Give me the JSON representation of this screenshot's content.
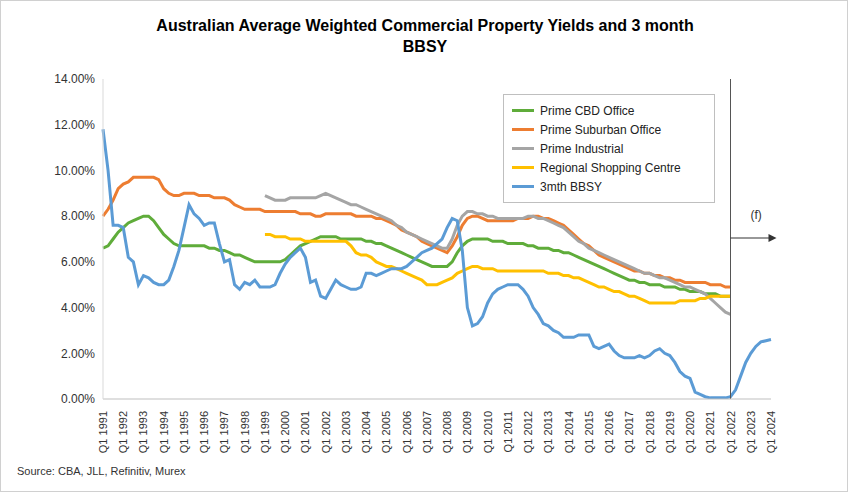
{
  "chart_data": {
    "type": "line",
    "title": "Australian Average Weighted Commercial Property Yields and 3 month BBSY",
    "source": "Source: CBA, JLL, Refinitiv, Murex",
    "legend": "top-right",
    "grid": false,
    "categories": [
      "Q1 1991",
      null,
      null,
      null,
      "Q1 1992",
      null,
      null,
      null,
      "Q1 1993",
      null,
      null,
      null,
      "Q1 1994",
      null,
      null,
      null,
      "Q1 1995",
      null,
      null,
      null,
      "Q1 1996",
      null,
      null,
      null,
      "Q1 1997",
      null,
      null,
      null,
      "Q1 1998",
      null,
      null,
      null,
      "Q1 1999",
      null,
      null,
      null,
      "Q1 2000",
      null,
      null,
      null,
      "Q1 2001",
      null,
      null,
      null,
      "Q1 2002",
      null,
      null,
      null,
      "Q1 2003",
      null,
      null,
      null,
      "Q1 2004",
      null,
      null,
      null,
      "Q1 2005",
      null,
      null,
      null,
      "Q1 2006",
      null,
      null,
      null,
      "Q1 2007",
      null,
      null,
      null,
      "Q1 2008",
      null,
      null,
      null,
      "Q1 2009",
      null,
      null,
      null,
      "Q1 2010",
      null,
      null,
      null,
      "Q1 2011",
      null,
      null,
      null,
      "Q1 2012",
      null,
      null,
      null,
      "Q1 2013",
      null,
      null,
      null,
      "Q1 2014",
      null,
      null,
      null,
      "Q1 2015",
      null,
      null,
      null,
      "Q1 2016",
      null,
      null,
      null,
      "Q1 2017",
      null,
      null,
      null,
      "Q1 2018",
      null,
      null,
      null,
      "Q1 2019",
      null,
      null,
      null,
      "Q1 2020",
      null,
      null,
      null,
      "Q1 2021",
      null,
      null,
      null,
      "Q1 2022",
      null,
      null,
      null,
      "Q1 2023",
      null,
      null,
      null,
      "Q1 2024"
    ],
    "ylim": [
      0,
      14
    ],
    "yticks": [
      {
        "value": 0,
        "label": "0.00%"
      },
      {
        "value": 2,
        "label": "2.00%"
      },
      {
        "value": 4,
        "label": "4.00%"
      },
      {
        "value": 6,
        "label": "6.00%"
      },
      {
        "value": 8,
        "label": "8.00%"
      },
      {
        "value": 10,
        "label": "10.00%"
      },
      {
        "value": 12,
        "label": "12.00%"
      },
      {
        "value": 14,
        "label": "14.00%"
      }
    ],
    "annotations": [
      {
        "x": "Q1 2022",
        "label": "(f)"
      }
    ],
    "series": [
      {
        "name": "Prime CBD Office",
        "color": "#5fac3a",
        "values": [
          6.6,
          6.7,
          7.0,
          7.3,
          7.5,
          7.7,
          7.8,
          7.9,
          8.0,
          8.0,
          7.8,
          7.5,
          7.2,
          7.0,
          6.8,
          6.7,
          6.7,
          6.7,
          6.7,
          6.7,
          6.7,
          6.6,
          6.6,
          6.5,
          6.5,
          6.4,
          6.3,
          6.3,
          6.2,
          6.1,
          6.0,
          6.0,
          6.0,
          6.0,
          6.0,
          6.0,
          6.1,
          6.3,
          6.5,
          6.7,
          6.8,
          6.9,
          7.0,
          7.1,
          7.1,
          7.1,
          7.1,
          7.0,
          7.0,
          7.0,
          7.0,
          7.0,
          6.9,
          6.9,
          6.8,
          6.8,
          6.7,
          6.6,
          6.5,
          6.4,
          6.3,
          6.2,
          6.1,
          6.0,
          5.9,
          5.8,
          5.8,
          5.8,
          5.8,
          6.0,
          6.4,
          6.7,
          6.9,
          7.0,
          7.0,
          7.0,
          7.0,
          6.9,
          6.9,
          6.9,
          6.8,
          6.8,
          6.8,
          6.8,
          6.7,
          6.7,
          6.6,
          6.6,
          6.6,
          6.5,
          6.5,
          6.4,
          6.4,
          6.3,
          6.2,
          6.1,
          6.0,
          5.9,
          5.8,
          5.7,
          5.6,
          5.5,
          5.4,
          5.3,
          5.2,
          5.2,
          5.1,
          5.1,
          5.0,
          5.0,
          5.0,
          4.9,
          4.9,
          4.9,
          4.8,
          4.8,
          4.7,
          4.7,
          4.7,
          4.6,
          4.6,
          4.6,
          4.5,
          4.5,
          4.5,
          null,
          null,
          null,
          null,
          null,
          null,
          null,
          null
        ]
      },
      {
        "name": "Prime Suburban Office",
        "color": "#ed7d31",
        "values": [
          8.0,
          8.3,
          8.7,
          9.2,
          9.4,
          9.5,
          9.7,
          9.7,
          9.7,
          9.7,
          9.7,
          9.6,
          9.2,
          9.0,
          8.9,
          8.9,
          9.0,
          9.0,
          9.0,
          8.9,
          8.9,
          8.9,
          8.8,
          8.8,
          8.8,
          8.7,
          8.5,
          8.4,
          8.3,
          8.3,
          8.3,
          8.3,
          8.2,
          8.2,
          8.2,
          8.2,
          8.2,
          8.2,
          8.2,
          8.1,
          8.1,
          8.1,
          8.0,
          8.0,
          8.1,
          8.1,
          8.1,
          8.1,
          8.1,
          8.1,
          8.0,
          8.0,
          8.0,
          8.0,
          7.9,
          7.9,
          7.8,
          7.7,
          7.6,
          7.4,
          7.3,
          7.2,
          7.1,
          6.9,
          6.8,
          6.7,
          6.6,
          6.5,
          6.4,
          6.7,
          7.1,
          7.6,
          7.9,
          8.0,
          8.0,
          7.9,
          7.8,
          7.8,
          7.8,
          7.8,
          7.8,
          7.8,
          7.9,
          7.9,
          7.9,
          8.0,
          8.0,
          7.9,
          7.9,
          7.8,
          7.7,
          7.6,
          7.4,
          7.2,
          7.0,
          6.8,
          6.7,
          6.5,
          6.3,
          6.2,
          6.1,
          6.0,
          5.9,
          5.8,
          5.7,
          5.6,
          5.6,
          5.5,
          5.5,
          5.4,
          5.4,
          5.3,
          5.3,
          5.2,
          5.2,
          5.1,
          5.1,
          5.1,
          5.1,
          5.1,
          5.0,
          5.0,
          5.0,
          4.9,
          4.9,
          null,
          null,
          null,
          null,
          null,
          null,
          null,
          null
        ]
      },
      {
        "name": "Prime Industrial",
        "color": "#a5a5a5",
        "values": [
          null,
          null,
          null,
          null,
          null,
          null,
          null,
          null,
          null,
          null,
          null,
          null,
          null,
          null,
          null,
          null,
          null,
          null,
          null,
          null,
          null,
          null,
          null,
          null,
          null,
          null,
          null,
          null,
          null,
          null,
          null,
          null,
          8.9,
          8.8,
          8.7,
          8.7,
          8.7,
          8.8,
          8.8,
          8.8,
          8.8,
          8.8,
          8.8,
          8.9,
          9.0,
          8.9,
          8.8,
          8.7,
          8.6,
          8.5,
          8.5,
          8.4,
          8.3,
          8.2,
          8.1,
          8.0,
          7.9,
          7.8,
          7.6,
          7.5,
          7.3,
          7.2,
          7.1,
          7.0,
          6.9,
          6.8,
          6.7,
          6.6,
          6.6,
          7.0,
          7.6,
          8.0,
          8.2,
          8.2,
          8.1,
          8.1,
          8.0,
          8.0,
          7.9,
          7.9,
          7.9,
          7.9,
          7.9,
          7.9,
          8.0,
          8.0,
          7.9,
          7.9,
          7.8,
          7.7,
          7.6,
          7.5,
          7.3,
          7.1,
          6.9,
          6.8,
          6.6,
          6.5,
          6.4,
          6.3,
          6.2,
          6.1,
          6.0,
          5.9,
          5.8,
          5.7,
          5.6,
          5.5,
          5.5,
          5.4,
          5.3,
          5.3,
          5.2,
          5.1,
          5.0,
          4.9,
          4.9,
          4.8,
          4.7,
          4.6,
          4.4,
          4.2,
          4.0,
          3.8,
          3.7,
          null,
          null,
          null,
          null,
          null,
          null,
          null,
          null
        ]
      },
      {
        "name": "Regional Shopping Centre",
        "color": "#ffc000",
        "values": [
          null,
          null,
          null,
          null,
          null,
          null,
          null,
          null,
          null,
          null,
          null,
          null,
          null,
          null,
          null,
          null,
          null,
          null,
          null,
          null,
          null,
          null,
          null,
          null,
          null,
          null,
          null,
          null,
          null,
          null,
          null,
          null,
          7.2,
          7.2,
          7.1,
          7.1,
          7.1,
          7.0,
          7.0,
          7.0,
          6.9,
          6.9,
          6.9,
          6.9,
          6.9,
          6.9,
          6.9,
          6.9,
          6.9,
          6.7,
          6.4,
          6.3,
          6.3,
          6.2,
          6.0,
          5.9,
          5.8,
          5.8,
          5.7,
          5.6,
          5.5,
          5.4,
          5.3,
          5.2,
          5.0,
          5.0,
          5.0,
          5.1,
          5.2,
          5.3,
          5.5,
          5.6,
          5.7,
          5.8,
          5.8,
          5.7,
          5.7,
          5.7,
          5.6,
          5.6,
          5.6,
          5.6,
          5.6,
          5.6,
          5.6,
          5.6,
          5.6,
          5.6,
          5.5,
          5.5,
          5.5,
          5.4,
          5.4,
          5.3,
          5.3,
          5.2,
          5.1,
          5.0,
          4.9,
          4.9,
          4.8,
          4.7,
          4.7,
          4.6,
          4.5,
          4.5,
          4.4,
          4.3,
          4.2,
          4.2,
          4.2,
          4.2,
          4.2,
          4.2,
          4.3,
          4.3,
          4.3,
          4.3,
          4.4,
          4.4,
          4.5,
          4.5,
          4.5,
          4.5,
          4.5,
          null,
          null,
          null,
          null,
          null,
          null,
          null,
          null
        ]
      },
      {
        "name": "3mth BBSY",
        "color": "#5b9bd5",
        "values": [
          11.8,
          10.0,
          7.6,
          7.6,
          7.5,
          6.2,
          6.0,
          5.0,
          5.4,
          5.3,
          5.1,
          5.0,
          5.0,
          5.2,
          5.8,
          6.5,
          7.5,
          8.5,
          8.1,
          7.9,
          7.6,
          7.7,
          7.7,
          6.8,
          6.0,
          6.1,
          5.0,
          4.8,
          5.1,
          5.0,
          5.2,
          4.9,
          4.9,
          4.9,
          5.0,
          5.5,
          5.9,
          6.2,
          6.4,
          6.6,
          6.2,
          5.1,
          5.2,
          4.5,
          4.4,
          4.8,
          5.2,
          5.0,
          4.9,
          4.8,
          4.8,
          4.9,
          5.5,
          5.5,
          5.4,
          5.5,
          5.6,
          5.7,
          5.7,
          5.7,
          5.8,
          6.0,
          6.2,
          6.4,
          6.5,
          6.6,
          6.8,
          7.0,
          7.5,
          7.9,
          7.8,
          6.5,
          4.0,
          3.2,
          3.3,
          3.6,
          4.2,
          4.6,
          4.8,
          4.9,
          5.0,
          5.0,
          5.0,
          4.8,
          4.5,
          4.0,
          3.7,
          3.3,
          3.2,
          3.0,
          2.9,
          2.7,
          2.7,
          2.7,
          2.8,
          2.8,
          2.8,
          2.3,
          2.2,
          2.3,
          2.4,
          2.1,
          1.9,
          1.8,
          1.8,
          1.8,
          1.9,
          1.8,
          1.9,
          2.1,
          2.2,
          2.0,
          1.9,
          1.6,
          1.2,
          1.0,
          0.9,
          0.3,
          0.2,
          0.1,
          0.05,
          0.05,
          0.05,
          0.05,
          0.1,
          0.4,
          1.0,
          1.6,
          2.0,
          2.3,
          2.5,
          2.55,
          2.6
        ]
      }
    ]
  }
}
